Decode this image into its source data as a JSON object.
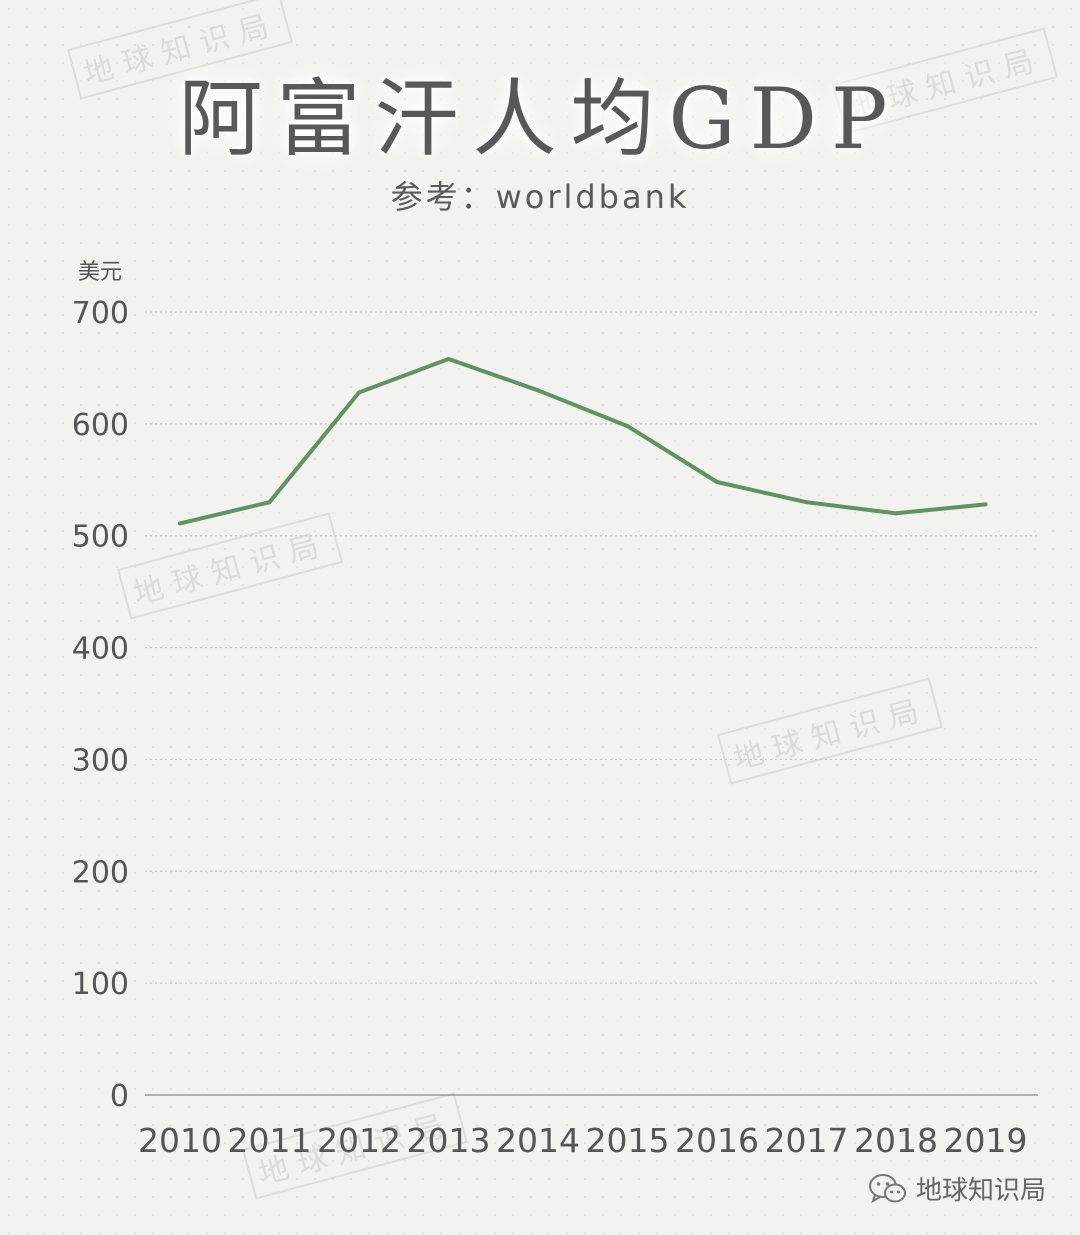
{
  "chart_data": {
    "type": "line",
    "title": "阿富汗人均GDP",
    "subtitle": "参考：worldbank",
    "ylabel": "美元",
    "xlabel": "",
    "categories": [
      "2010",
      "2011",
      "2012",
      "2013",
      "2014",
      "2015",
      "2016",
      "2017",
      "2018",
      "2019"
    ],
    "values": [
      511,
      530,
      628,
      658,
      630,
      598,
      548,
      530,
      520,
      528
    ],
    "yticks": [
      "0",
      "100",
      "200",
      "300",
      "400",
      "500",
      "600",
      "700"
    ],
    "ylim": [
      0,
      700
    ],
    "grid": true,
    "line_color": "#5f9363"
  },
  "watermark": "地球知识局",
  "brand": {
    "icon": "wechat-icon",
    "label": "地球知识局"
  }
}
